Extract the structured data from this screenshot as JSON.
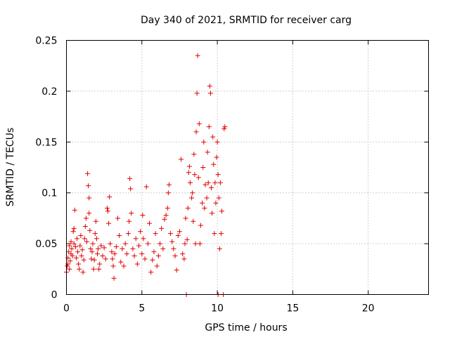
{
  "chart_data": {
    "type": "scatter",
    "title": "Day 340 of 2021, SRMTID for receiver carg",
    "xlabel": "GPS time / hours",
    "ylabel": "SRMTID / TECUs",
    "xlim": [
      0,
      24
    ],
    "ylim": [
      0,
      0.25
    ],
    "x_ticks": [
      0,
      5,
      10,
      15,
      20
    ],
    "x_tick_labels": [
      "0",
      "5",
      "10",
      "15",
      "20"
    ],
    "y_ticks": [
      0,
      0.05,
      0.1,
      0.15,
      0.2,
      0.25
    ],
    "y_tick_labels": [
      "0",
      "0.05",
      "0.1",
      "0.15",
      "0.2",
      "0.25"
    ],
    "grid": true,
    "marker": "plus",
    "series": [
      {
        "name": "SRMTID",
        "color": "#e00000",
        "points": [
          [
            0.0,
            0.022
          ],
          [
            0.05,
            0.028
          ],
          [
            0.1,
            0.03
          ],
          [
            0.1,
            0.036
          ],
          [
            0.15,
            0.042
          ],
          [
            0.2,
            0.025
          ],
          [
            0.2,
            0.048
          ],
          [
            0.25,
            0.033
          ],
          [
            0.3,
            0.052
          ],
          [
            0.3,
            0.04
          ],
          [
            0.35,
            0.045
          ],
          [
            0.4,
            0.038
          ],
          [
            0.45,
            0.062
          ],
          [
            0.5,
            0.05
          ],
          [
            0.5,
            0.065
          ],
          [
            0.55,
            0.083
          ],
          [
            0.6,
            0.047
          ],
          [
            0.65,
            0.036
          ],
          [
            0.7,
            0.055
          ],
          [
            0.75,
            0.042
          ],
          [
            0.8,
            0.03
          ],
          [
            0.85,
            0.025
          ],
          [
            0.9,
            0.048
          ],
          [
            0.95,
            0.058
          ],
          [
            1.0,
            0.038
          ],
          [
            1.05,
            0.044
          ],
          [
            1.1,
            0.022
          ],
          [
            1.15,
            0.034
          ],
          [
            1.2,
            0.055
          ],
          [
            1.25,
            0.067
          ],
          [
            1.3,
            0.075
          ],
          [
            1.35,
            0.052
          ],
          [
            1.4,
            0.119
          ],
          [
            1.45,
            0.107
          ],
          [
            1.5,
            0.08
          ],
          [
            1.5,
            0.095
          ],
          [
            1.55,
            0.063
          ],
          [
            1.6,
            0.045
          ],
          [
            1.65,
            0.035
          ],
          [
            1.7,
            0.042
          ],
          [
            1.75,
            0.05
          ],
          [
            1.8,
            0.025
          ],
          [
            1.85,
            0.034
          ],
          [
            1.9,
            0.06
          ],
          [
            1.95,
            0.072
          ],
          [
            2.0,
            0.055
          ],
          [
            2.05,
            0.04
          ],
          [
            2.1,
            0.045
          ],
          [
            2.15,
            0.025
          ],
          [
            2.2,
            0.03
          ],
          [
            2.3,
            0.048
          ],
          [
            2.4,
            0.038
          ],
          [
            2.5,
            0.046
          ],
          [
            2.6,
            0.035
          ],
          [
            2.7,
            0.085
          ],
          [
            2.75,
            0.082
          ],
          [
            2.8,
            0.07
          ],
          [
            2.85,
            0.096
          ],
          [
            2.9,
            0.05
          ],
          [
            3.0,
            0.042
          ],
          [
            3.05,
            0.035
          ],
          [
            3.1,
            0.028
          ],
          [
            3.15,
            0.016
          ],
          [
            3.2,
            0.04
          ],
          [
            3.3,
            0.047
          ],
          [
            3.4,
            0.075
          ],
          [
            3.5,
            0.058
          ],
          [
            3.6,
            0.032
          ],
          [
            3.7,
            0.045
          ],
          [
            3.8,
            0.028
          ],
          [
            3.9,
            0.05
          ],
          [
            4.0,
            0.04
          ],
          [
            4.1,
            0.06
          ],
          [
            4.15,
            0.072
          ],
          [
            4.2,
            0.114
          ],
          [
            4.25,
            0.104
          ],
          [
            4.3,
            0.08
          ],
          [
            4.4,
            0.045
          ],
          [
            4.5,
            0.038
          ],
          [
            4.6,
            0.055
          ],
          [
            4.7,
            0.03
          ],
          [
            4.8,
            0.048
          ],
          [
            4.9,
            0.062
          ],
          [
            5.0,
            0.04
          ],
          [
            5.05,
            0.078
          ],
          [
            5.1,
            0.055
          ],
          [
            5.2,
            0.035
          ],
          [
            5.3,
            0.106
          ],
          [
            5.4,
            0.05
          ],
          [
            5.5,
            0.07
          ],
          [
            5.6,
            0.022
          ],
          [
            5.7,
            0.034
          ],
          [
            5.8,
            0.042
          ],
          [
            5.9,
            0.06
          ],
          [
            6.0,
            0.028
          ],
          [
            6.1,
            0.038
          ],
          [
            6.2,
            0.05
          ],
          [
            6.3,
            0.065
          ],
          [
            6.4,
            0.045
          ],
          [
            6.5,
            0.074
          ],
          [
            6.6,
            0.078
          ],
          [
            6.7,
            0.085
          ],
          [
            6.75,
            0.1
          ],
          [
            6.8,
            0.108
          ],
          [
            6.9,
            0.06
          ],
          [
            7.0,
            0.052
          ],
          [
            7.1,
            0.045
          ],
          [
            7.2,
            0.038
          ],
          [
            7.3,
            0.024
          ],
          [
            7.4,
            0.058
          ],
          [
            7.5,
            0.062
          ],
          [
            7.6,
            0.133
          ],
          [
            7.7,
            0.04
          ],
          [
            7.8,
            0.035
          ],
          [
            7.85,
            0.05
          ],
          [
            7.9,
            0.075
          ],
          [
            8.0,
            0.054
          ],
          [
            8.05,
            0.085
          ],
          [
            8.1,
            0.12
          ],
          [
            8.15,
            0.126
          ],
          [
            8.2,
            0.11
          ],
          [
            8.3,
            0.095
          ],
          [
            8.35,
            0.1
          ],
          [
            8.4,
            0.072
          ],
          [
            8.45,
            0.138
          ],
          [
            8.5,
            0.118
          ],
          [
            8.55,
            0.05
          ],
          [
            8.6,
            0.16
          ],
          [
            8.65,
            0.198
          ],
          [
            8.7,
            0.235
          ],
          [
            8.75,
            0.115
          ],
          [
            8.8,
            0.168
          ],
          [
            8.85,
            0.05
          ],
          [
            8.9,
            0.068
          ],
          [
            9.0,
            0.09
          ],
          [
            9.05,
            0.125
          ],
          [
            9.1,
            0.15
          ],
          [
            9.15,
            0.085
          ],
          [
            9.2,
            0.108
          ],
          [
            9.3,
            0.095
          ],
          [
            9.35,
            0.14
          ],
          [
            9.4,
            0.11
          ],
          [
            9.45,
            0.165
          ],
          [
            9.5,
            0.205
          ],
          [
            9.55,
            0.198
          ],
          [
            9.6,
            0.105
          ],
          [
            9.65,
            0.08
          ],
          [
            9.7,
            0.155
          ],
          [
            9.75,
            0.128
          ],
          [
            9.8,
            0.06
          ],
          [
            9.85,
            0.11
          ],
          [
            9.9,
            0.09
          ],
          [
            9.95,
            0.135
          ],
          [
            10.0,
            0.15
          ],
          [
            10.05,
            0.118
          ],
          [
            10.1,
            0.095
          ],
          [
            10.15,
            0.045
          ],
          [
            10.2,
            0.11
          ],
          [
            10.25,
            0.06
          ],
          [
            10.3,
            0.082
          ],
          [
            10.45,
            0.163
          ],
          [
            10.5,
            0.165
          ],
          [
            7.95,
            0.0
          ],
          [
            10.05,
            0.0
          ],
          [
            10.4,
            0.0
          ]
        ]
      }
    ]
  }
}
